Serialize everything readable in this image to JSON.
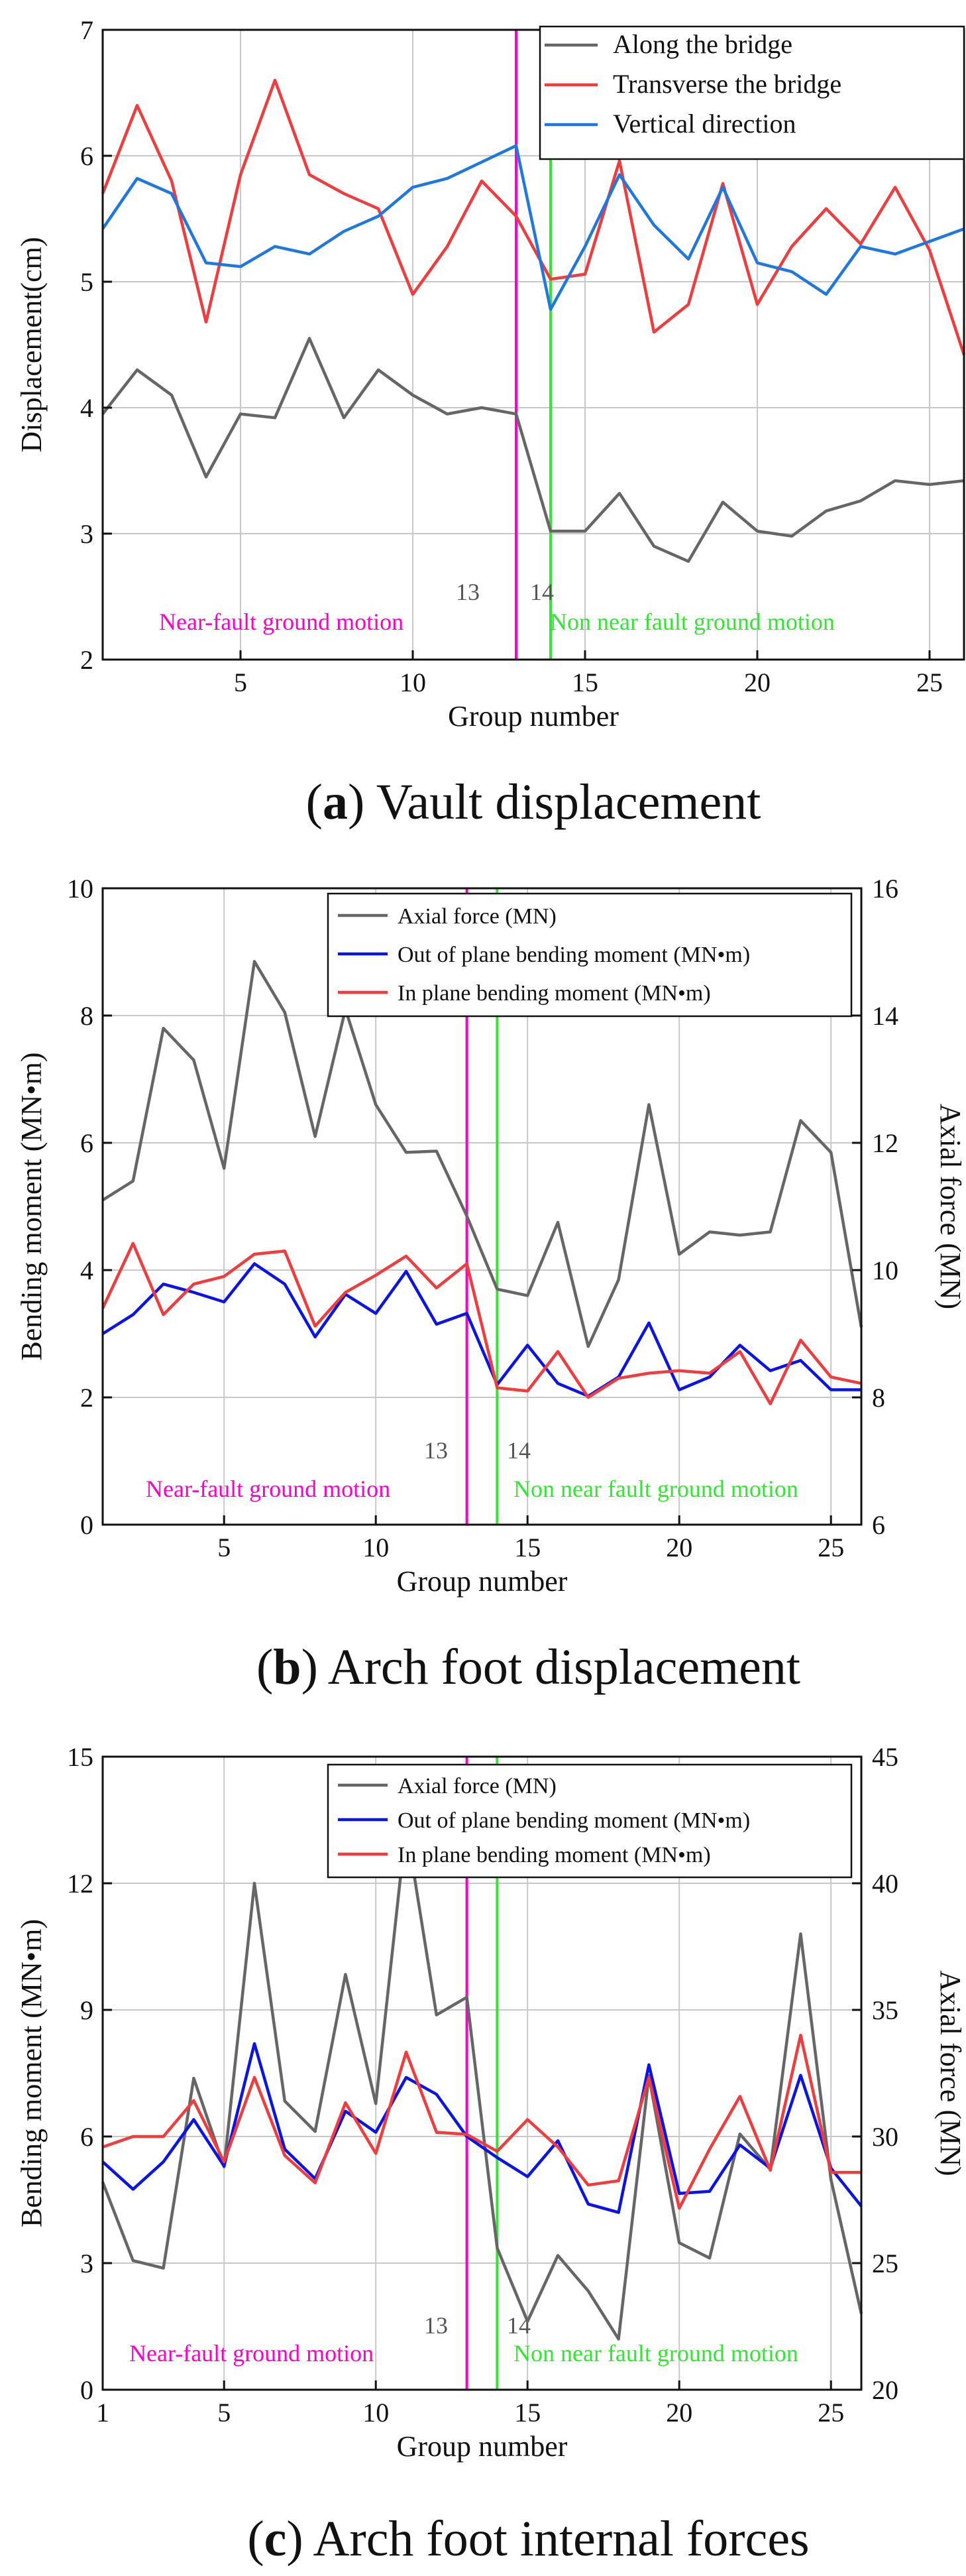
{
  "colors": {
    "gray": "#666666",
    "red": "#f03c3c",
    "blue_a": "#1f78e0",
    "blue": "#0a14e6",
    "magenta": "#ff00c8",
    "green": "#33e633",
    "grid": "#c8c8c8"
  },
  "chart_data": [
    {
      "type": "line",
      "caption_letter": "a",
      "caption_text": " Vault displacement",
      "xlabel": "Group number",
      "ylabel": "Displacement(cm)",
      "xlim": [
        1,
        26
      ],
      "ylim": [
        2,
        7
      ],
      "xticks": [
        5,
        10,
        15,
        20,
        25
      ],
      "yticks": [
        2,
        3,
        4,
        5,
        6,
        7
      ],
      "x": [
        1,
        2,
        3,
        4,
        5,
        6,
        7,
        8,
        9,
        10,
        11,
        12,
        13,
        14,
        15,
        16,
        17,
        18,
        19,
        20,
        21,
        22,
        23,
        24,
        25,
        26
      ],
      "series": [
        {
          "name": "Along the bridge",
          "color": "#666666",
          "axis": "left",
          "values": [
            3.95,
            4.3,
            4.1,
            3.45,
            3.95,
            3.92,
            4.55,
            3.92,
            4.3,
            4.1,
            3.95,
            4.0,
            3.95,
            3.02,
            3.02,
            3.32,
            2.9,
            2.78,
            3.25,
            3.02,
            2.98,
            3.18,
            3.26,
            3.42,
            3.39,
            3.42
          ]
        },
        {
          "name": "Transverse the bridge",
          "color": "#f03c3c",
          "axis": "left",
          "values": [
            5.7,
            6.4,
            5.8,
            4.68,
            5.85,
            6.6,
            5.85,
            5.7,
            5.58,
            4.9,
            5.28,
            5.8,
            5.52,
            5.02,
            5.06,
            5.96,
            4.6,
            4.82,
            5.78,
            4.82,
            5.28,
            5.58,
            5.3,
            5.75,
            5.25,
            4.42
          ]
        },
        {
          "name": "Vertical direction",
          "color": "#1f78e0",
          "axis": "left",
          "values": [
            5.42,
            5.82,
            5.7,
            5.15,
            5.12,
            5.28,
            5.22,
            5.4,
            5.52,
            5.75,
            5.82,
            5.95,
            6.08,
            4.78,
            5.28,
            5.85,
            5.45,
            5.18,
            5.75,
            5.15,
            5.08,
            4.9,
            5.28,
            5.22,
            5.32,
            5.42
          ]
        }
      ],
      "markers": [
        {
          "x": 13,
          "label": "13",
          "color": "#ff00c8"
        },
        {
          "x": 14,
          "label": "14",
          "color": "#33e633"
        }
      ],
      "annotations": [
        {
          "text": "Near-fault ground motion",
          "color": "#ff00c8"
        },
        {
          "text": "Non near fault ground motion",
          "color": "#33e633"
        }
      ]
    },
    {
      "type": "line",
      "caption_letter": "b",
      "caption_text": " Arch foot displacement",
      "xlabel": "Group number",
      "ylabel": "Bending moment (MN•m)",
      "y2label": "Axial force (MN)",
      "xlim": [
        1,
        26
      ],
      "ylim": [
        0,
        10
      ],
      "y2lim": [
        6,
        16
      ],
      "xticks": [
        5,
        10,
        15,
        20,
        25
      ],
      "yticks": [
        0,
        2,
        4,
        6,
        8,
        10
      ],
      "y2ticks": [
        6,
        8,
        10,
        12,
        14,
        16
      ],
      "x": [
        1,
        2,
        3,
        4,
        5,
        6,
        7,
        8,
        9,
        10,
        11,
        12,
        13,
        14,
        15,
        16,
        17,
        18,
        19,
        20,
        21,
        22,
        23,
        24,
        25,
        26
      ],
      "series": [
        {
          "name": "Axial force (MN)",
          "color": "#666666",
          "axis": "right",
          "values": [
            11.1,
            11.4,
            13.8,
            13.3,
            11.6,
            14.85,
            14.05,
            12.1,
            14.1,
            12.6,
            11.85,
            11.87,
            10.85,
            9.7,
            9.6,
            10.75,
            8.8,
            9.85,
            12.6,
            10.25,
            10.6,
            10.55,
            10.6,
            12.35,
            11.85,
            9.1
          ]
        },
        {
          "name": "Out of plane bending moment (MN•m)",
          "color": "#0a14e6",
          "axis": "left",
          "values": [
            3.0,
            3.3,
            3.78,
            3.65,
            3.5,
            4.1,
            3.78,
            2.95,
            3.62,
            3.32,
            3.98,
            3.15,
            3.32,
            2.2,
            2.82,
            2.22,
            2.02,
            2.32,
            3.17,
            2.12,
            2.32,
            2.82,
            2.42,
            2.58,
            2.12,
            2.12
          ]
        },
        {
          "name": "In plane bending moment (MN•m)",
          "color": "#f03c3c",
          "axis": "left",
          "values": [
            3.4,
            4.42,
            3.3,
            3.78,
            3.9,
            4.25,
            4.3,
            3.12,
            3.65,
            3.92,
            4.22,
            3.72,
            4.1,
            2.15,
            2.1,
            2.72,
            2.0,
            2.3,
            2.38,
            2.42,
            2.38,
            2.72,
            1.9,
            2.9,
            2.32,
            2.22
          ]
        }
      ],
      "markers": [
        {
          "x": 13,
          "label": "13",
          "color": "#ff00c8"
        },
        {
          "x": 14,
          "label": "14",
          "color": "#33e633"
        }
      ],
      "annotations": [
        {
          "text": "Near-fault ground motion",
          "color": "#ff00c8"
        },
        {
          "text": "Non near fault ground motion",
          "color": "#33e633"
        }
      ]
    },
    {
      "type": "line",
      "caption_letter": "c",
      "caption_text": " Arch foot internal forces",
      "xlabel": "Group number",
      "ylabel": "Bending moment (MN•m)",
      "y2label": "Axial force (MN)",
      "xlim": [
        1,
        26
      ],
      "ylim": [
        0,
        15
      ],
      "y2lim": [
        20,
        45
      ],
      "xticks": [
        1,
        5,
        10,
        15,
        20,
        25
      ],
      "yticks": [
        0,
        3,
        6,
        9,
        12,
        15
      ],
      "y2ticks": [
        20,
        25,
        30,
        35,
        40,
        45
      ],
      "x": [
        1,
        2,
        3,
        4,
        5,
        6,
        7,
        8,
        9,
        10,
        11,
        12,
        13,
        14,
        15,
        16,
        17,
        18,
        19,
        20,
        21,
        22,
        23,
        24,
        25,
        26
      ],
      "series": [
        {
          "name": "Axial force (MN)",
          "color": "#666666",
          "axis": "right",
          "values": [
            28.2,
            25.1,
            24.8,
            32.3,
            28.8,
            40.0,
            31.4,
            30.2,
            36.4,
            31.3,
            42.3,
            34.8,
            35.5,
            25.6,
            22.7,
            25.3,
            23.9,
            22.0,
            32.4,
            25.8,
            25.2,
            30.1,
            28.7,
            38.0,
            28.3,
            23.0
          ]
        },
        {
          "name": "Out of plane bending moment (MN•m)",
          "color": "#0a14e6",
          "axis": "left",
          "values": [
            5.4,
            4.75,
            5.4,
            6.4,
            5.3,
            8.2,
            5.7,
            5.0,
            6.6,
            6.1,
            7.4,
            7.0,
            6.0,
            5.5,
            5.05,
            5.9,
            4.4,
            4.2,
            7.7,
            4.65,
            4.7,
            5.8,
            5.25,
            7.45,
            5.25,
            4.35
          ]
        },
        {
          "name": "In plane bending moment (MN•m)",
          "color": "#f03c3c",
          "axis": "left",
          "values": [
            5.75,
            6.0,
            6.0,
            6.85,
            5.4,
            7.4,
            5.55,
            4.9,
            6.8,
            5.6,
            8.0,
            6.1,
            6.05,
            5.65,
            6.4,
            5.75,
            4.85,
            4.95,
            7.4,
            4.3,
            5.7,
            6.95,
            5.2,
            8.4,
            5.15,
            5.15
          ]
        }
      ],
      "markers": [
        {
          "x": 13,
          "label": "13",
          "color": "#ff00c8"
        },
        {
          "x": 14,
          "label": "14",
          "color": "#33e633"
        }
      ],
      "annotations": [
        {
          "text": "Near-fault ground motion",
          "color": "#ff00c8"
        },
        {
          "text": "Non near fault ground motion",
          "color": "#33e633"
        }
      ]
    }
  ]
}
